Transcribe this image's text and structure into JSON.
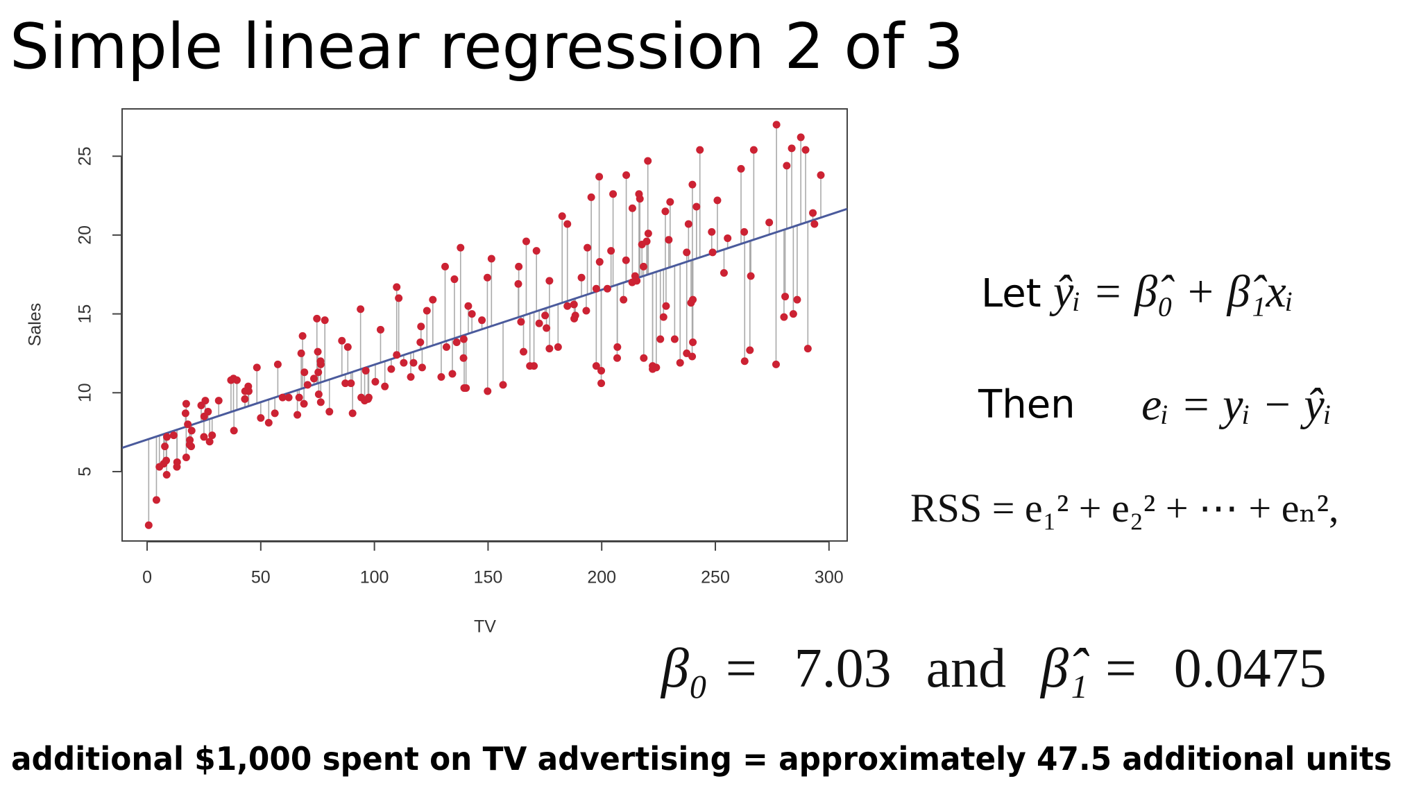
{
  "header": {
    "title": "Simple linear regression 2 of 3"
  },
  "chart_data": {
    "type": "scatter",
    "x_label": "TV",
    "y_label": "Sales",
    "xlim": [
      -11,
      308
    ],
    "ylim": [
      0.6,
      28
    ],
    "xticks": [
      0,
      50,
      100,
      150,
      200,
      250,
      300
    ],
    "yticks": [
      5,
      10,
      15,
      20,
      25
    ],
    "color": "#cc2233",
    "line_color": "#4a5a9c",
    "residual_color": "#aaaaaa",
    "fit": {
      "intercept": 7.03,
      "slope": 0.0475
    },
    "x": [
      230.1,
      44.5,
      17.2,
      151.5,
      180.8,
      8.7,
      57.5,
      120.2,
      8.6,
      199.8,
      66.1,
      214.7,
      23.8,
      97.5,
      204.1,
      195.4,
      67.8,
      281.4,
      69.2,
      147.3,
      218.4,
      237.4,
      13.2,
      228.3,
      62.3,
      262.9,
      142.9,
      240.1,
      248.8,
      70.6,
      292.9,
      112.9,
      97.2,
      265.6,
      95.7,
      290.7,
      266.9,
      74.7,
      43.1,
      228,
      202.5,
      177,
      293.6,
      206.9,
      25.1,
      175.1,
      89.7,
      239.9,
      227.2,
      66.9,
      199.8,
      100.4,
      216.4,
      182.6,
      262.7,
      198.9,
      7.3,
      136.2,
      210.8,
      210.7,
      53.5,
      261.3,
      239.3,
      102.7,
      131.1,
      69,
      31.5,
      139.3,
      237.4,
      216.8,
      199.1,
      109.8,
      26.8,
      129.4,
      213.4,
      16.9,
      27.5,
      120.5,
      5.4,
      116,
      76.4,
      239.8,
      75.3,
      68.4,
      213.5,
      193.2,
      76.3,
      110.7,
      88.3,
      109.8,
      134.3,
      28.6,
      217.7,
      250.9,
      107.4,
      163.3,
      197.6,
      184.9,
      289.7,
      135.2,
      222.4,
      296.4,
      280.2,
      187.9,
      238.2,
      137.9,
      25,
      90.4,
      13.1,
      255.4,
      225.8,
      241.7,
      175.7,
      209.6,
      78.2,
      75.1,
      139.2,
      76.4,
      125.7,
      19.4,
      141.3,
      18.8,
      224,
      123.1,
      229.5,
      87.2,
      7.8,
      80.2,
      220.3,
      59.6,
      0.7,
      265.2,
      8.4,
      219.8,
      36.9,
      48.3,
      25.6,
      273.7,
      43,
      184.9,
      73.4,
      193.7,
      220.5,
      104.6,
      96.2,
      140.3,
      240.1,
      243.2,
      38,
      44.7,
      280.7,
      121,
      197.6,
      171.3,
      187.8,
      4.1,
      93.9,
      149.8,
      11.7,
      131.7,
      172.5,
      85.7,
      188.4,
      163.5,
      117.2,
      234.5,
      17.9,
      206.8,
      215.4,
      284.3,
      50,
      164.5,
      19.6,
      168.4,
      222.4,
      276.9,
      248.4,
      170.2,
      276.7,
      165.6,
      156.6,
      218.5,
      56.2,
      287.6,
      253.8,
      205,
      139.5,
      191.1,
      286,
      18.7,
      39.5,
      75.5,
      17.2,
      166.8,
      149.7,
      38.2,
      94.2,
      177,
      283.6,
      232.1
    ],
    "values": [
      22.1,
      10.4,
      9.3,
      18.5,
      12.9,
      7.2,
      11.8,
      13.2,
      4.8,
      10.6,
      8.6,
      17.4,
      9.2,
      9.7,
      19,
      22.4,
      12.5,
      24.4,
      11.3,
      14.6,
      18,
      12.5,
      5.6,
      15.5,
      9.7,
      12,
      15,
      15.9,
      18.9,
      10.5,
      21.4,
      11.9,
      9.6,
      17.4,
      9.5,
      12.8,
      25.4,
      14.7,
      10.1,
      21.5,
      16.6,
      17.1,
      20.7,
      12.9,
      8.5,
      14.9,
      10.6,
      23.2,
      14.8,
      9.7,
      11.4,
      10.7,
      22.6,
      21.2,
      20.2,
      23.7,
      5.5,
      13.2,
      23.8,
      18.4,
      8.1,
      24.2,
      15.7,
      14,
      18,
      9.3,
      9.5,
      13.4,
      18.9,
      22.3,
      18.3,
      12.4,
      8.8,
      11,
      17,
      8.7,
      6.9,
      14.2,
      5.3,
      11,
      11.8,
      12.3,
      11.3,
      13.6,
      21.7,
      15.2,
      12,
      16,
      12.9,
      16.7,
      11.2,
      7.3,
      19.4,
      22.2,
      11.5,
      16.9,
      11.7,
      15.5,
      25.4,
      17.2,
      11.7,
      23.8,
      14.8,
      14.7,
      20.7,
      19.2,
      7.2,
      8.7,
      5.3,
      19.8,
      13.4,
      21.8,
      14.1,
      15.9,
      14.6,
      12.6,
      12.2,
      9.4,
      15.9,
      6.6,
      15.5,
      7,
      11.6,
      15.2,
      19.7,
      10.6,
      6.6,
      8.8,
      24.7,
      9.7,
      1.6,
      12.7,
      5.7,
      19.6,
      10.8,
      11.6,
      9.5,
      20.8,
      9.6,
      20.7,
      10.9,
      19.2,
      20.1,
      10.4,
      11.4,
      10.3,
      13.2,
      25.4,
      10.9,
      10.1,
      16.1,
      11.6,
      16.6,
      19,
      15.6,
      3.2,
      15.3,
      10.1,
      7.3,
      12.9,
      14.4,
      13.3,
      14.9,
      18,
      11.9,
      11.9,
      8,
      12.2,
      17.1,
      15,
      8.4,
      14.5,
      7.6,
      11.7,
      11.5,
      27,
      20.2,
      11.7,
      11.8,
      12.6,
      10.5,
      12.2,
      8.7,
      26.2,
      17.6,
      22.6,
      10.3,
      17.3,
      15.9,
      6.7,
      10.8,
      9.9,
      5.9,
      19.6,
      17.3,
      7.6,
      9.7,
      12.8,
      25.5,
      13.4
    ]
  },
  "formulas": {
    "let_label": "Let",
    "let_formula": "ŷᵢ = β̂₀ + β̂₁xᵢ",
    "then_label": "Then",
    "then_formula": "eᵢ = yᵢ − ŷᵢ",
    "rss": "RSS = e₁² + e₂² + ⋯ + eₙ²,",
    "beta0_label": "β₀ =",
    "and_word": "and",
    "beta1_label": "β̂₁ ="
  },
  "footer": {
    "text": "additional $1,000 spent on TV advertising  =  approximately 47.5 additional units"
  }
}
